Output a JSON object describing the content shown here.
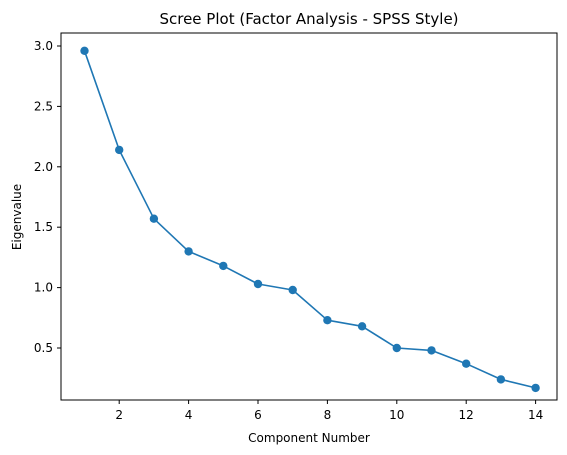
{
  "chart_data": {
    "type": "line",
    "title": "Scree Plot (Factor Analysis - SPSS Style)",
    "xlabel": "Component Number",
    "ylabel": "Eigenvalue",
    "x_ticks": [
      "2",
      "4",
      "6",
      "8",
      "10",
      "12",
      "14"
    ],
    "y_ticks": [
      "0.5",
      "1.0",
      "1.5",
      "2.0",
      "2.5",
      "3.0"
    ],
    "grid": false,
    "series": [
      {
        "color": "#1f77b4",
        "marker": "circle",
        "x": [
          1,
          2,
          3,
          4,
          5,
          6,
          7,
          8,
          9,
          10,
          11,
          12,
          13,
          14
        ],
        "y": [
          2.96,
          2.14,
          1.57,
          1.3,
          1.18,
          1.03,
          0.98,
          0.73,
          0.68,
          0.5,
          0.48,
          0.37,
          0.24,
          0.17
        ]
      }
    ]
  }
}
